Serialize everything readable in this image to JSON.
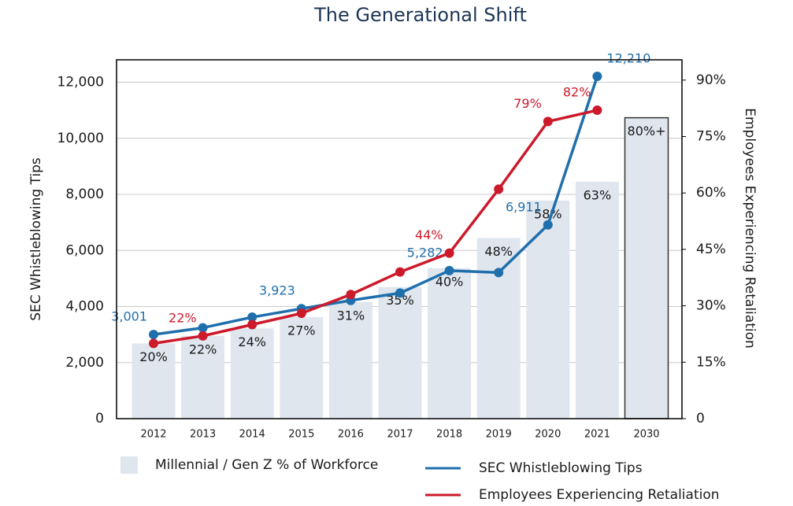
{
  "chart_data": {
    "type": "bar-line",
    "title": "The Generational Shift",
    "y_label": "SEC Whistleblowing Tips",
    "y2_label": "Employees Experiencing Retaliation",
    "categories": [
      "2012",
      "2013",
      "2014",
      "2015",
      "2016",
      "2017",
      "2018",
      "2019",
      "2020",
      "2021",
      "2030"
    ],
    "ylim": [
      0,
      12800
    ],
    "yticks": [
      0,
      {
        "value": 2000,
        "label": "2,000"
      },
      {
        "value": 4000,
        "label": "4,000"
      },
      {
        "value": 6000,
        "label": "6,000"
      },
      {
        "value": 8000,
        "label": "8,000"
      },
      {
        "value": 10000,
        "label": "10,000"
      },
      {
        "value": 12000,
        "label": "12,000"
      }
    ],
    "y2lim": [
      0,
      95.4
    ],
    "y2ticks": [
      0,
      {
        "value": 15,
        "label": "15%"
      },
      {
        "value": 30,
        "label": "30%"
      },
      {
        "value": 45,
        "label": "45%"
      },
      {
        "value": 60,
        "label": "60%"
      },
      {
        "value": 75,
        "label": "75%"
      },
      {
        "value": 90,
        "label": "90%"
      }
    ],
    "grid": true,
    "series": [
      {
        "name": "Millennial / Gen Z % of Workforce",
        "kind": "bar",
        "axis": "y2",
        "color": "#dfe6ee",
        "values": [
          20,
          22,
          24,
          27,
          31,
          35,
          40,
          48,
          58,
          63,
          80
        ],
        "value_labels": [
          "20%",
          "22%",
          "24%",
          "27%",
          "31%",
          "35%",
          "40%",
          "48%",
          "58%",
          "63%",
          "80%+"
        ]
      },
      {
        "name": "SEC Whistleblowing Tips",
        "kind": "line",
        "color": "#1f6fad",
        "values": [
          3001,
          3240,
          3620,
          3923,
          4218,
          4480,
          5282,
          5212,
          6911,
          12210,
          null
        ],
        "value_labels": [
          "3,001",
          null,
          null,
          "3,923",
          null,
          null,
          "5,282",
          null,
          "6,911",
          "12,210",
          null
        ]
      },
      {
        "name": "Employees Experiencing Retaliation",
        "kind": "line",
        "axis": "y2",
        "color": "#cc1a2b",
        "values": [
          20,
          22,
          25,
          28,
          33,
          39,
          44,
          61,
          79,
          82,
          null
        ],
        "value_labels": [
          null,
          "22%",
          null,
          null,
          null,
          null,
          "44%",
          null,
          "79%",
          "82%",
          null
        ]
      }
    ]
  }
}
